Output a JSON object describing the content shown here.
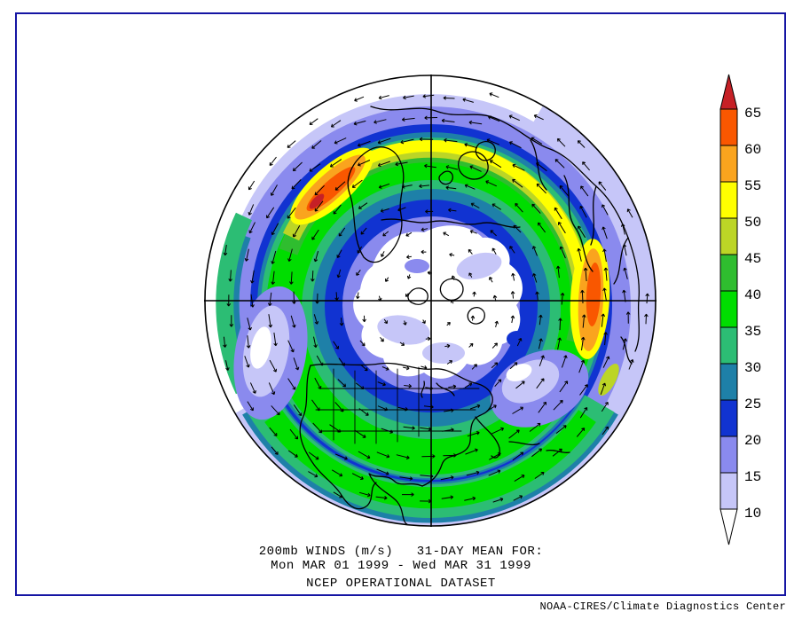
{
  "page": {
    "background": "#ffffff",
    "frame_border_color": "#1515a3"
  },
  "caption": {
    "line1": "200mb WINDS (m/s)   31-DAY MEAN FOR:",
    "line2": "Mon MAR 01 1999 - Wed MAR 31 1999",
    "line3": "NCEP OPERATIONAL DATASET"
  },
  "credit": "NOAA-CIRES/Climate Diagnostics Center",
  "chart_data": {
    "type": "heatmap",
    "title": "200mb WINDS (m/s) 31-DAY MEAN FOR: Mon MAR 01 1999 - Wed MAR 31 1999",
    "subtitle": "NCEP OPERATIONAL DATASET",
    "variable": "200 mb mean wind speed with mean wind vectors",
    "units": "m/s",
    "projection": "Northern Hemisphere polar stereographic, crosshair through pole",
    "contour_levels": [
      10,
      15,
      20,
      25,
      30,
      35,
      40,
      45,
      50,
      55,
      60,
      65
    ],
    "colorbar": {
      "orientation": "vertical",
      "position": "right",
      "tick_labels": [
        "65",
        "60",
        "55",
        "50",
        "45",
        "40",
        "35",
        "30",
        "25",
        "20",
        "15",
        "10"
      ],
      "segment_colors_top_to_bottom": [
        "#f95700",
        "#faa41e",
        "#ffff00",
        "#bcd526",
        "#2fbd2f",
        "#00dd00",
        "#2cbd74",
        "#1e80a8",
        "#1133d1",
        "#8a8aee",
        "#c6c6f8"
      ],
      "over_arrow_color": "#c62026",
      "under_arrow_color": "#ffffff"
    },
    "features": [
      {
        "name": "north-atlantic-jet-streak",
        "location": "upper-left quadrant",
        "peak_speed_ms": "> 65"
      },
      {
        "name": "east-asian-pacific-jet-streak",
        "location": "right limb",
        "peak_speed_ms": "55-65"
      },
      {
        "name": "subtropical-jet-band",
        "location": "bottom, southern US / Mexico / Gulf",
        "peak_speed_ms": "35-45"
      },
      {
        "name": "polar-wind-minimum",
        "location": "map center, Arctic",
        "peak_speed_ms": "< 10-15"
      },
      {
        "name": "north-pacific-col-minimum",
        "location": "left, 9 o'clock",
        "peak_speed_ms": "< 10"
      }
    ],
    "wind_arrows": {
      "style": "mean wind vectors",
      "circulation": "westerly, counterclockwise around the pole on screen",
      "grid_spacing_px": 25,
      "color": "#000000"
    }
  }
}
